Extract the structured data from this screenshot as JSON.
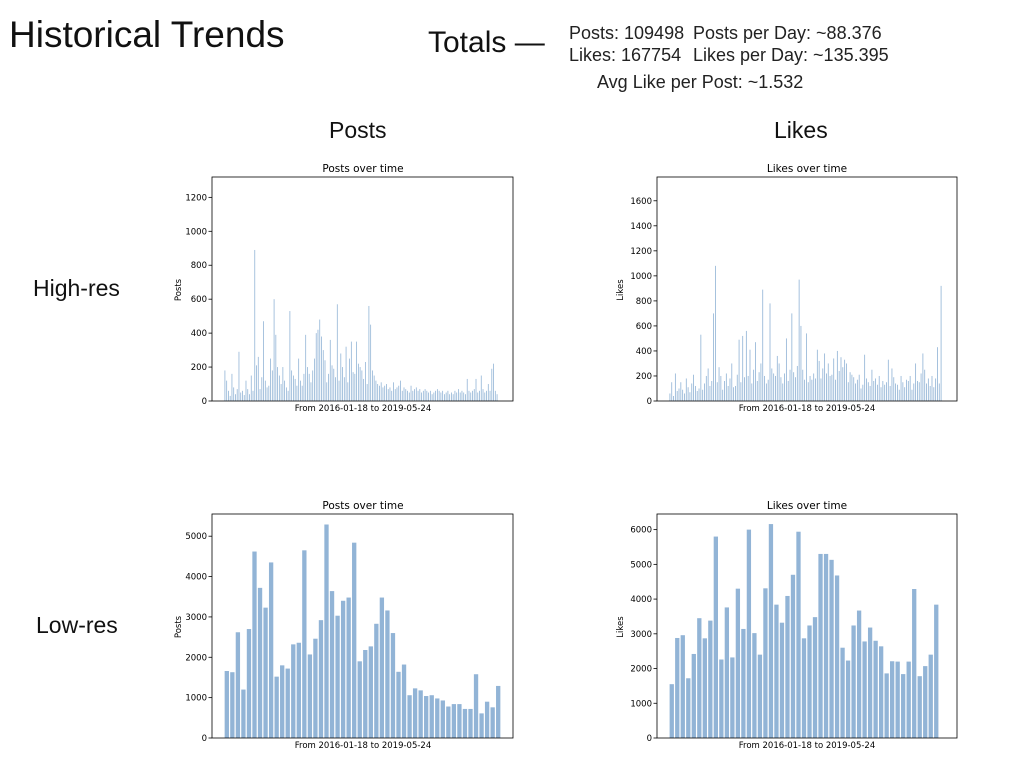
{
  "header": {
    "title": "Historical Trends",
    "totals_label": "Totals —",
    "posts_total": "Posts: 109498",
    "posts_per_day": "Posts per Day: ~88.376",
    "likes_total": "Likes: 167754",
    "likes_per_day": "Likes per Day: ~135.395",
    "avg_like_per_post": "Avg Like per Post: ~1.532"
  },
  "columns": {
    "posts": "Posts",
    "likes": "Likes"
  },
  "rows": {
    "high_res": "High-res",
    "low_res": "Low-res"
  },
  "colors": {
    "bar": "#92b4d6",
    "axis": "#000000"
  },
  "chart_data": [
    {
      "id": "posts_high",
      "type": "bar",
      "title": "Posts over time",
      "xlabel": "From 2016-01-18 to 2019-05-24",
      "ylabel": "Posts",
      "ylim": [
        0,
        1320
      ],
      "yticks": [
        0,
        200,
        400,
        600,
        800,
        1000,
        1200
      ],
      "values": [
        180,
        120,
        60,
        30,
        160,
        80,
        40,
        70,
        290,
        50,
        60,
        35,
        120,
        70,
        40,
        150,
        60,
        890,
        210,
        260,
        70,
        140,
        470,
        120,
        80,
        90,
        250,
        180,
        600,
        390,
        200,
        150,
        100,
        200,
        120,
        80,
        60,
        530,
        180,
        150,
        130,
        90,
        250,
        120,
        90,
        160,
        390,
        200,
        160,
        110,
        180,
        250,
        400,
        420,
        480,
        380,
        300,
        240,
        110,
        160,
        360,
        210,
        190,
        140,
        570,
        120,
        280,
        200,
        140,
        320,
        110,
        250,
        350,
        170,
        160,
        350,
        220,
        200,
        180,
        130,
        230,
        100,
        560,
        450,
        180,
        150,
        120,
        100,
        90,
        110,
        80,
        90,
        100,
        70,
        80,
        60,
        110,
        70,
        80,
        90,
        120,
        60,
        80,
        70,
        60,
        50,
        90,
        60,
        70,
        80,
        60,
        70,
        50,
        60,
        70,
        60,
        50,
        60,
        40,
        50,
        60,
        70,
        60,
        50,
        60,
        40,
        50,
        60,
        40,
        50,
        40,
        60,
        50,
        70,
        50,
        60,
        50,
        40,
        130,
        60,
        50,
        60,
        70,
        130,
        50,
        60,
        150,
        70,
        50,
        60,
        100,
        60,
        190,
        220,
        60,
        40
      ]
    },
    {
      "id": "likes_high",
      "type": "bar",
      "title": "Likes over time",
      "xlabel": "From 2016-01-18 to 2019-05-24",
      "ylabel": "Likes",
      "ylim": [
        0,
        1790
      ],
      "yticks": [
        0,
        200,
        400,
        600,
        800,
        1000,
        1200,
        1400,
        1600
      ],
      "values": [
        60,
        150,
        40,
        220,
        80,
        100,
        150,
        90,
        60,
        180,
        110,
        70,
        140,
        210,
        120,
        80,
        100,
        530,
        90,
        140,
        200,
        260,
        120,
        160,
        700,
        1080,
        150,
        270,
        200,
        90,
        160,
        220,
        120,
        180,
        300,
        110,
        120,
        210,
        490,
        150,
        520,
        190,
        560,
        200,
        410,
        140,
        250,
        470,
        160,
        230,
        300,
        890,
        200,
        140,
        170,
        780,
        260,
        220,
        200,
        360,
        300,
        190,
        140,
        220,
        500,
        160,
        250,
        700,
        230,
        190,
        280,
        970,
        600,
        250,
        170,
        540,
        150,
        200,
        170,
        220,
        180,
        410,
        320,
        180,
        260,
        380,
        220,
        300,
        200,
        210,
        340,
        170,
        400,
        240,
        350,
        270,
        330,
        300,
        150,
        230,
        210,
        190,
        140,
        170,
        210,
        100,
        130,
        370,
        180,
        150,
        120,
        250,
        160,
        180,
        130,
        200,
        110,
        160,
        130,
        150,
        330,
        120,
        260,
        190,
        140,
        130,
        90,
        200,
        150,
        110,
        170,
        160,
        200,
        90,
        140,
        300,
        160,
        150,
        220,
        380,
        250,
        140,
        180,
        120,
        200,
        110,
        180,
        430,
        140,
        920
      ]
    },
    {
      "id": "posts_low",
      "type": "bar",
      "title": "Posts over time",
      "xlabel": "From 2016-01-18 to 2019-05-24",
      "ylabel": "Posts",
      "ylim": [
        0,
        5550
      ],
      "yticks": [
        0,
        1000,
        2000,
        3000,
        4000,
        5000
      ],
      "values": [
        1660,
        1630,
        2620,
        1200,
        2700,
        4620,
        3720,
        3230,
        4350,
        1520,
        1800,
        1720,
        2320,
        2360,
        4650,
        2070,
        2460,
        2920,
        5290,
        3640,
        3030,
        3400,
        3480,
        4840,
        1900,
        2180,
        2270,
        2830,
        3480,
        3160,
        2600,
        1640,
        1820,
        1060,
        1230,
        1180,
        1040,
        1060,
        980,
        930,
        780,
        840,
        840,
        720,
        720,
        1580,
        610,
        900,
        760,
        1290
      ]
    },
    {
      "id": "likes_low",
      "type": "bar",
      "title": "Likes over time",
      "xlabel": "From 2016-01-18 to 2019-05-24",
      "ylabel": "Likes",
      "ylim": [
        0,
        6450
      ],
      "yticks": [
        0,
        1000,
        2000,
        3000,
        4000,
        5000,
        6000
      ],
      "values": [
        1550,
        2880,
        2960,
        1720,
        2420,
        3450,
        2870,
        3380,
        5800,
        2260,
        3760,
        2320,
        4300,
        3140,
        6000,
        3020,
        2400,
        4310,
        6160,
        3840,
        3320,
        4090,
        4700,
        5940,
        2870,
        3240,
        3480,
        5300,
        5300,
        5130,
        4680,
        2600,
        2230,
        3240,
        3670,
        2780,
        3180,
        2800,
        2640,
        1860,
        2210,
        2200,
        1840,
        2200,
        4290,
        1780,
        2070,
        2400,
        3840
      ]
    }
  ]
}
